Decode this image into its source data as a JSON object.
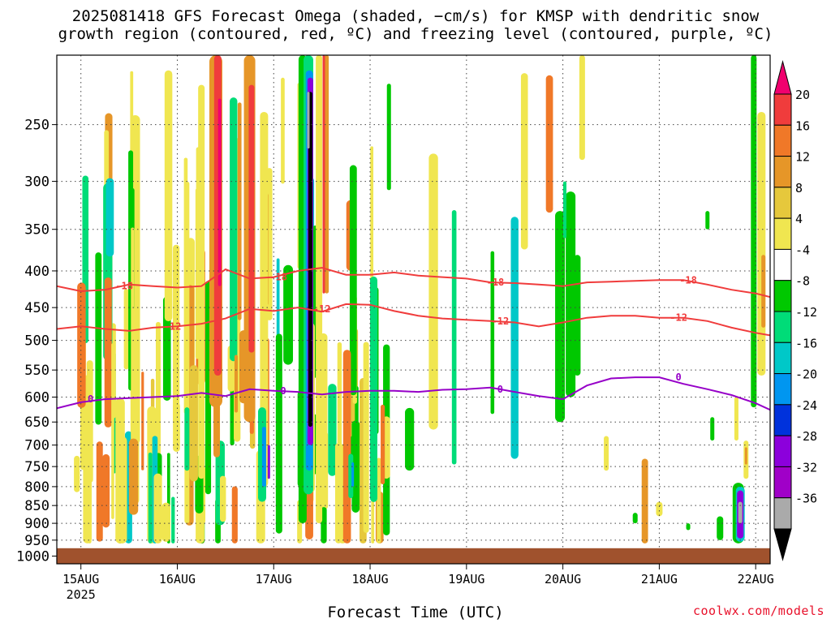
{
  "title_line1": "2025081418 GFS Forecast Omega (shaded, −cm/s) for KMSP with dendritic snow",
  "title_line2": "growth region (contoured, red, ºC) and freezing level (contoured, purple, ºC)",
  "credit": "coolwx.com/models",
  "chart_data": {
    "type": "heatmap",
    "title": "2025081418 GFS Forecast Omega (shaded, −cm/s) for KMSP with dendritic snow growth region (contoured, red, ºC) and freezing level (contoured, purple, ºC)",
    "xlabel": "Forecast Time (UTC)",
    "ylabel": "",
    "x_ticks": [
      "15AUG",
      "16AUG",
      "17AUG",
      "18AUG",
      "19AUG",
      "20AUG",
      "21AUG",
      "22AUG"
    ],
    "x_year_label": "2025",
    "y_ticks": [
      250,
      300,
      350,
      400,
      450,
      500,
      550,
      600,
      650,
      700,
      750,
      800,
      850,
      900,
      950,
      1000
    ],
    "y_scale": "log",
    "y_reversed": true,
    "xlim_days": [
      14.75,
      22.15
    ],
    "ylim_hpa": [
      200,
      1025
    ],
    "grid": true,
    "colorbar": {
      "labels": [
        "20",
        "16",
        "12",
        "8",
        "4",
        "-4",
        "-8",
        "-12",
        "-16",
        "-20",
        "-24",
        "-28",
        "-32",
        "-36"
      ],
      "colors": [
        "#f0006e",
        "#f03c3c",
        "#f07828",
        "#e69628",
        "#e6c83c",
        "#f0e650",
        "#ffffff",
        "#00c800",
        "#00dc78",
        "#00c8c8",
        "#0096f0",
        "#0032dc",
        "#8c00dc",
        "#a000c8",
        "#aaaaaa",
        "#000000"
      ]
    },
    "series": [
      {
        "name": "-18",
        "color": "#f03c3c",
        "x": [
          14.75,
          15.0,
          15.25,
          15.5,
          15.75,
          16.0,
          16.25,
          16.5,
          16.75,
          17.0,
          17.25,
          17.5,
          17.75,
          18.0,
          18.25,
          18.5,
          18.75,
          19.0,
          19.25,
          19.5,
          19.75,
          20.0,
          20.25,
          20.5,
          20.75,
          21.0,
          21.25,
          21.5,
          21.75,
          22.0,
          22.15
        ],
        "y": [
          420,
          427,
          425,
          418,
          420,
          422,
          420,
          398,
          410,
          408,
          400,
          396,
          405,
          405,
          402,
          406,
          408,
          410,
          415,
          416,
          418,
          420,
          415,
          414,
          413,
          412,
          412,
          418,
          425,
          430,
          435
        ]
      },
      {
        "name": "-12",
        "color": "#f03c3c",
        "x": [
          14.75,
          15.0,
          15.25,
          15.5,
          15.75,
          16.0,
          16.25,
          16.5,
          16.75,
          17.0,
          17.25,
          17.5,
          17.75,
          18.0,
          18.25,
          18.5,
          18.75,
          19.0,
          19.25,
          19.5,
          19.75,
          20.0,
          20.25,
          20.5,
          20.75,
          21.0,
          21.25,
          21.5,
          21.75,
          22.0,
          22.15
        ],
        "y": [
          482,
          478,
          482,
          485,
          480,
          478,
          474,
          466,
          452,
          455,
          450,
          456,
          445,
          446,
          455,
          462,
          466,
          468,
          470,
          472,
          478,
          472,
          465,
          462,
          462,
          465,
          465,
          470,
          480,
          488,
          492
        ]
      },
      {
        "name": "0",
        "color": "#9600c8",
        "x": [
          14.75,
          15.0,
          15.25,
          15.5,
          15.75,
          16.0,
          16.25,
          16.5,
          16.75,
          17.0,
          17.25,
          17.5,
          17.75,
          18.0,
          18.25,
          18.5,
          18.75,
          19.0,
          19.25,
          19.5,
          19.75,
          20.0,
          20.25,
          20.5,
          20.75,
          21.0,
          21.25,
          21.5,
          21.75,
          22.0,
          22.15
        ],
        "y": [
          622,
          610,
          604,
          602,
          600,
          598,
          592,
          598,
          585,
          588,
          590,
          595,
          590,
          588,
          588,
          590,
          586,
          585,
          582,
          590,
          598,
          604,
          578,
          565,
          563,
          563,
          575,
          585,
          596,
          612,
          625
        ]
      }
    ],
    "contour_labels": [
      {
        "text": "-18",
        "x": 15.45,
        "y": 420
      },
      {
        "text": "-18",
        "x": 17.05,
        "y": 408
      },
      {
        "text": "-18",
        "x": 19.3,
        "y": 415
      },
      {
        "text": "-18",
        "x": 21.3,
        "y": 412
      },
      {
        "text": "-12",
        "x": 15.95,
        "y": 478
      },
      {
        "text": "-12",
        "x": 17.5,
        "y": 452
      },
      {
        "text": "-12",
        "x": 19.35,
        "y": 470
      },
      {
        "text": "-12",
        "x": 21.2,
        "y": 465
      },
      {
        "text": "0",
        "x": 15.1,
        "y": 604
      },
      {
        "text": "0",
        "x": 17.1,
        "y": 588
      },
      {
        "text": "0",
        "x": 19.35,
        "y": 585
      },
      {
        "text": "0",
        "x": 21.2,
        "y": 563
      }
    ],
    "surface_level_hpa": 975
  }
}
